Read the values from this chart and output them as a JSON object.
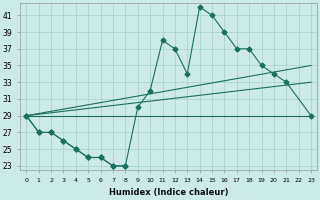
{
  "xlabel": "Humidex (Indice chaleur)",
  "bg_color": "#cceae8",
  "grid_color": "#aad4d0",
  "line_color": "#1a7060",
  "xlim": [
    -0.5,
    23.5
  ],
  "ylim": [
    22.5,
    42.5
  ],
  "xticks": [
    0,
    1,
    2,
    3,
    4,
    5,
    6,
    7,
    8,
    9,
    10,
    11,
    12,
    13,
    14,
    15,
    16,
    17,
    18,
    19,
    20,
    21,
    22,
    23
  ],
  "yticks": [
    23,
    25,
    27,
    29,
    31,
    33,
    35,
    37,
    39,
    41
  ],
  "series": [
    {
      "x": [
        0,
        1,
        2,
        3,
        4,
        5,
        6,
        7,
        8,
        9,
        10,
        11,
        12,
        13,
        14,
        15,
        16,
        17,
        18,
        19,
        20,
        21,
        23
      ],
      "y": [
        29,
        27,
        27,
        26,
        25,
        24,
        24,
        23,
        23,
        30,
        32,
        38,
        37,
        34,
        42,
        41,
        39,
        37,
        37,
        35,
        34,
        33,
        29
      ],
      "marker": "D",
      "markersize": 2.5,
      "lw": 0.8
    },
    {
      "x": [
        0,
        1,
        2,
        3,
        4,
        5,
        6,
        7,
        8
      ],
      "y": [
        29,
        27,
        27,
        26,
        25,
        24,
        24,
        23,
        23
      ],
      "marker": "D",
      "markersize": 2.5,
      "lw": 0.8
    },
    {
      "x": [
        0,
        23
      ],
      "y": [
        29,
        35
      ],
      "marker": null,
      "lw": 0.8
    },
    {
      "x": [
        0,
        23
      ],
      "y": [
        29,
        33
      ],
      "marker": null,
      "lw": 0.8
    },
    {
      "x": [
        0,
        23
      ],
      "y": [
        29,
        29
      ],
      "marker": null,
      "lw": 0.8
    }
  ]
}
